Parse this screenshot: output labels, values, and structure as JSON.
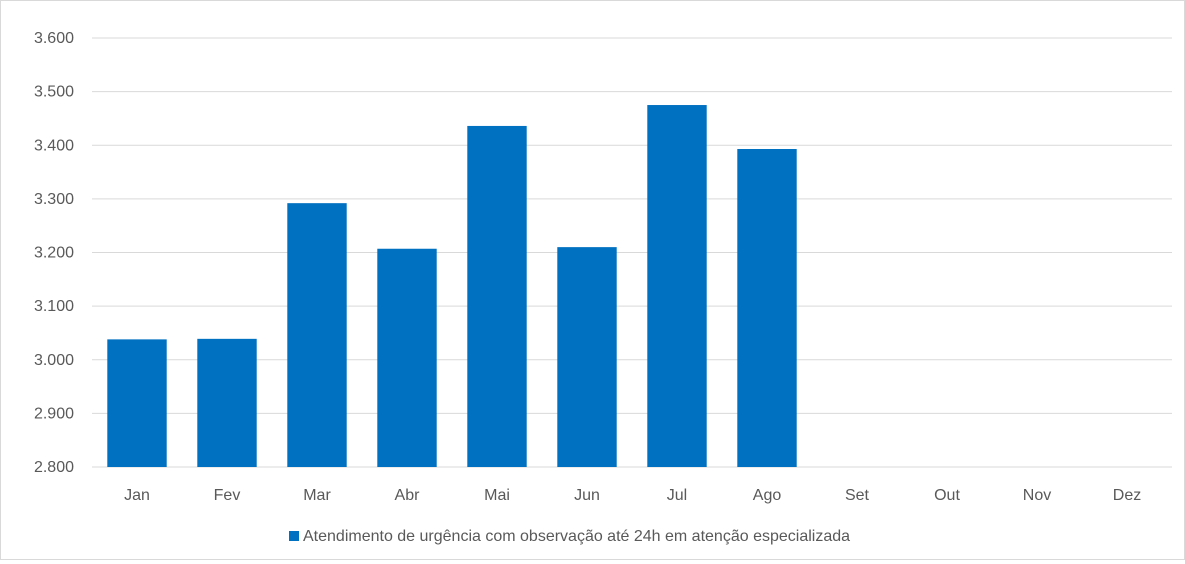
{
  "chart_data": {
    "type": "bar",
    "categories": [
      "Jan",
      "Fev",
      "Mar",
      "Abr",
      "Mai",
      "Jun",
      "Jul",
      "Ago",
      "Set",
      "Out",
      "Nov",
      "Dez"
    ],
    "series": [
      {
        "name": "Atendimento de urgência com observação até 24h em atenção especializada",
        "values": [
          3038,
          3039,
          3292,
          3207,
          3436,
          3210,
          3475,
          3393,
          null,
          null,
          null,
          null
        ],
        "color": "#0070c0"
      }
    ],
    "title": "",
    "xlabel": "",
    "ylabel": "",
    "ylim": [
      2800,
      3600
    ],
    "yticks": [
      2800,
      2900,
      3000,
      3100,
      3200,
      3300,
      3400,
      3500,
      3600
    ],
    "ytick_labels": [
      "2.800",
      "2.900",
      "3.000",
      "3.100",
      "3.200",
      "3.300",
      "3.400",
      "3.500",
      "3.600"
    ],
    "grid": true,
    "gridline_color": "#d9d9d9",
    "legend_position": "bottom"
  }
}
